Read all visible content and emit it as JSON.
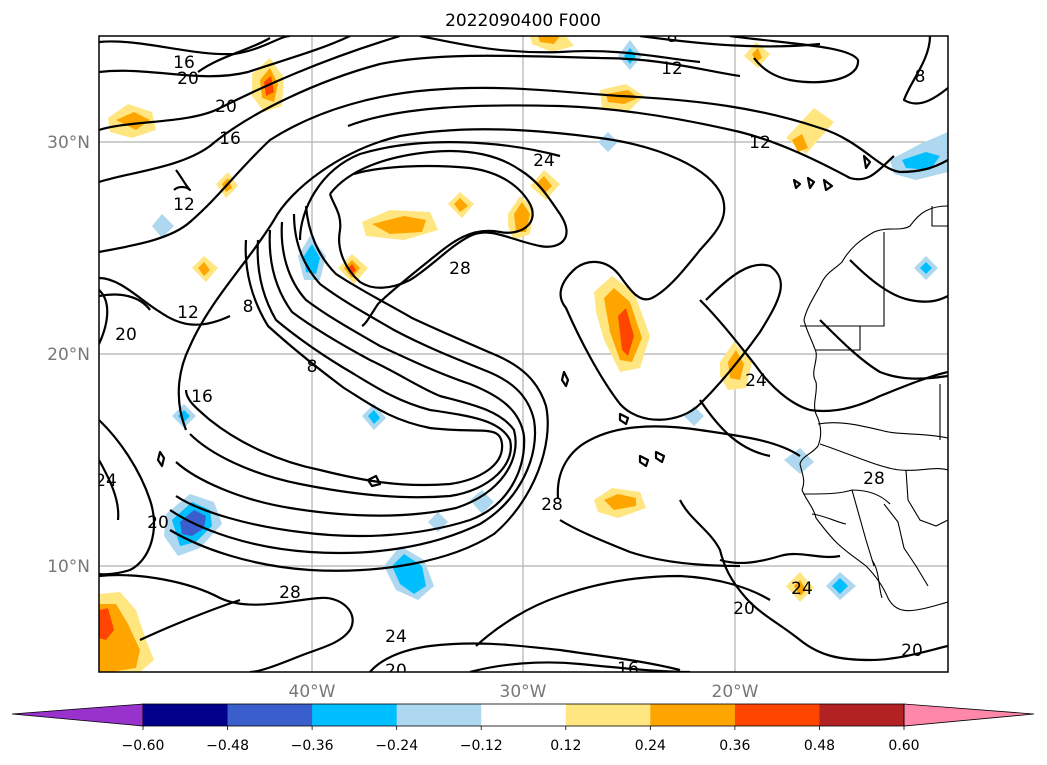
{
  "title": "2022090400 F000",
  "lat_labels": [
    "30°N",
    "20°N",
    "10°N"
  ],
  "lon_labels": [
    "40°W",
    "30°W",
    "20°W"
  ],
  "contour_levels": [
    "8",
    "12",
    "16",
    "20",
    "24",
    "28"
  ],
  "contour_labels": {
    "top16": "16",
    "top20": "20",
    "top12": "12",
    "top8": "8",
    "nw20": "20",
    "nw16": "16",
    "nw12": "12",
    "ne12": "12",
    "ne8": "8",
    "c24": "24",
    "c28": "28",
    "c8a": "8",
    "c8b": "8",
    "w12": "12",
    "w20": "20",
    "w16": "16",
    "sw24": "24",
    "sw20": "20",
    "s28": "28",
    "s24": "24",
    "s20": "20",
    "s16": "16",
    "e24": "24",
    "e28": "28",
    "se28": "28",
    "se24": "24",
    "se20a": "20",
    "se20b": "20"
  },
  "colorbar": {
    "ticks": [
      "−0.60",
      "−0.48",
      "−0.36",
      "−0.24",
      "−0.12",
      "0.12",
      "0.24",
      "0.36",
      "0.48",
      "0.60"
    ],
    "colors": [
      "#9932cc",
      "#00008b",
      "#3a5fcd",
      "#00bfff",
      "#add8f0",
      "#ffffff",
      "#ffe680",
      "#ffa500",
      "#ff4500",
      "#b22222",
      "#ff88aa"
    ]
  },
  "anomaly_colors": {
    "pos1": "#ffe680",
    "pos2": "#ffa500",
    "pos3": "#ff4500",
    "neg1": "#add8f0",
    "neg2": "#00bfff",
    "neg3": "#3a5fcd"
  }
}
